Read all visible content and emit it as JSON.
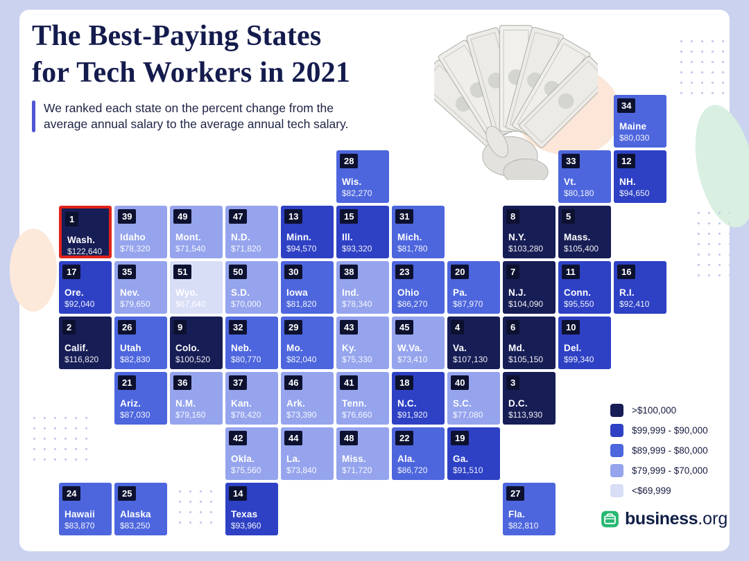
{
  "header": {
    "title_line1": "The Best-Paying States",
    "title_line2_pre": "for ",
    "title_line2_bold": "Tech Workers",
    "title_line2_post": " in 2021",
    "subtitle_line1": "We ranked each state on the percent change from the",
    "subtitle_line2": "average annual salary to the average annual tech salary."
  },
  "colors": {
    "background": "#cad2ef",
    "card": "#ffffff",
    "title_navy": "#141b4d",
    "accent_bar": "#5055d4",
    "badge": "#0d1130",
    "highlight": "#e0231c",
    "band1": "#171d55",
    "band2": "#2e41c4",
    "band3": "#4d66dd",
    "band4": "#95a4ed",
    "band5": "#d9def7",
    "logo_green": "#27b872",
    "logo_navy": "#0f1e46"
  },
  "legend": {
    "items": [
      {
        "label": ">$100,000",
        "band": "band1"
      },
      {
        "label": "$99,999 - $90,000",
        "band": "band2"
      },
      {
        "label": "$89,999 - $80,000",
        "band": "band3"
      },
      {
        "label": "$79,999 - $70,000",
        "band": "band4"
      },
      {
        "label": "<$69,999",
        "band": "band5"
      }
    ]
  },
  "logo": {
    "brand": "business",
    "tld": ".org"
  },
  "chart_data": {
    "type": "heatmap",
    "title": "The Best-Paying States for Tech Workers in 2021",
    "subtitle": "We ranked each state on the percent change from the average annual salary to the average annual tech salary.",
    "unit": "average annual tech salary (USD)",
    "bands": [
      {
        "label": ">$100,000",
        "color": "#171d55"
      },
      {
        "label": "$99,999 - $90,000",
        "color": "#2e41c4"
      },
      {
        "label": "$89,999 - $80,000",
        "color": "#4d66dd"
      },
      {
        "label": "$79,999 - $70,000",
        "color": "#95a4ed"
      },
      {
        "label": "<$69,999",
        "color": "#d9def7"
      }
    ],
    "states": [
      {
        "rank": 34,
        "name": "Maine",
        "salary": "$80,030",
        "col": 10,
        "row": 0,
        "band": "band3"
      },
      {
        "rank": 28,
        "name": "Wis.",
        "salary": "$82,270",
        "col": 5,
        "row": 1,
        "band": "band3"
      },
      {
        "rank": 33,
        "name": "Vt.",
        "salary": "$80,180",
        "col": 9,
        "row": 1,
        "band": "band3"
      },
      {
        "rank": 12,
        "name": "NH.",
        "salary": "$94,650",
        "col": 10,
        "row": 1,
        "band": "band2"
      },
      {
        "rank": 1,
        "name": "Wash.",
        "salary": "$122,640",
        "col": 0,
        "row": 2,
        "band": "band1",
        "highlight": true
      },
      {
        "rank": 39,
        "name": "Idaho",
        "salary": "$78,320",
        "col": 1,
        "row": 2,
        "band": "band4"
      },
      {
        "rank": 49,
        "name": "Mont.",
        "salary": "$71,540",
        "col": 2,
        "row": 2,
        "band": "band4"
      },
      {
        "rank": 47,
        "name": "N.D.",
        "salary": "$71,820",
        "col": 3,
        "row": 2,
        "band": "band4"
      },
      {
        "rank": 13,
        "name": "Minn.",
        "salary": "$94,570",
        "col": 4,
        "row": 2,
        "band": "band2"
      },
      {
        "rank": 15,
        "name": "Ill.",
        "salary": "$93,320",
        "col": 5,
        "row": 2,
        "band": "band2"
      },
      {
        "rank": 31,
        "name": "Mich.",
        "salary": "$81,780",
        "col": 6,
        "row": 2,
        "band": "band3"
      },
      {
        "rank": 8,
        "name": "N.Y.",
        "salary": "$103,280",
        "col": 8,
        "row": 2,
        "band": "band1"
      },
      {
        "rank": 5,
        "name": "Mass.",
        "salary": "$105,400",
        "col": 9,
        "row": 2,
        "band": "band1"
      },
      {
        "rank": 17,
        "name": "Ore.",
        "salary": "$92,040",
        "col": 0,
        "row": 3,
        "band": "band2"
      },
      {
        "rank": 35,
        "name": "Nev.",
        "salary": "$79,650",
        "col": 1,
        "row": 3,
        "band": "band4"
      },
      {
        "rank": 51,
        "name": "Wyo.",
        "salary": "$67,640",
        "col": 2,
        "row": 3,
        "band": "band5"
      },
      {
        "rank": 50,
        "name": "S.D.",
        "salary": "$70,000",
        "col": 3,
        "row": 3,
        "band": "band4"
      },
      {
        "rank": 30,
        "name": "Iowa",
        "salary": "$81,820",
        "col": 4,
        "row": 3,
        "band": "band3"
      },
      {
        "rank": 38,
        "name": "Ind.",
        "salary": "$78,340",
        "col": 5,
        "row": 3,
        "band": "band4"
      },
      {
        "rank": 23,
        "name": "Ohio",
        "salary": "$86,270",
        "col": 6,
        "row": 3,
        "band": "band3"
      },
      {
        "rank": 20,
        "name": "Pa.",
        "salary": "$87,970",
        "col": 7,
        "row": 3,
        "band": "band3"
      },
      {
        "rank": 7,
        "name": "N.J.",
        "salary": "$104,090",
        "col": 8,
        "row": 3,
        "band": "band1"
      },
      {
        "rank": 11,
        "name": "Conn.",
        "salary": "$95,550",
        "col": 9,
        "row": 3,
        "band": "band2"
      },
      {
        "rank": 16,
        "name": "R.I.",
        "salary": "$92,410",
        "col": 10,
        "row": 3,
        "band": "band2"
      },
      {
        "rank": 2,
        "name": "Calif.",
        "salary": "$116,820",
        "col": 0,
        "row": 4,
        "band": "band1"
      },
      {
        "rank": 26,
        "name": "Utah",
        "salary": "$82,830",
        "col": 1,
        "row": 4,
        "band": "band3"
      },
      {
        "rank": 9,
        "name": "Colo.",
        "salary": "$100,520",
        "col": 2,
        "row": 4,
        "band": "band1"
      },
      {
        "rank": 32,
        "name": "Neb.",
        "salary": "$80,770",
        "col": 3,
        "row": 4,
        "band": "band3"
      },
      {
        "rank": 29,
        "name": "Mo.",
        "salary": "$82,040",
        "col": 4,
        "row": 4,
        "band": "band3"
      },
      {
        "rank": 43,
        "name": "Ky.",
        "salary": "$75,330",
        "col": 5,
        "row": 4,
        "band": "band4"
      },
      {
        "rank": 45,
        "name": "W.Va.",
        "salary": "$73,410",
        "col": 6,
        "row": 4,
        "band": "band4"
      },
      {
        "rank": 4,
        "name": "Va.",
        "salary": "$107,130",
        "col": 7,
        "row": 4,
        "band": "band1"
      },
      {
        "rank": 6,
        "name": "Md.",
        "salary": "$105,150",
        "col": 8,
        "row": 4,
        "band": "band1"
      },
      {
        "rank": 10,
        "name": "Del.",
        "salary": "$99,340",
        "col": 9,
        "row": 4,
        "band": "band2"
      },
      {
        "rank": 21,
        "name": "Ariz.",
        "salary": "$87,030",
        "col": 1,
        "row": 5,
        "band": "band3"
      },
      {
        "rank": 36,
        "name": "N.M.",
        "salary": "$79,160",
        "col": 2,
        "row": 5,
        "band": "band4"
      },
      {
        "rank": 37,
        "name": "Kan.",
        "salary": "$78,420",
        "col": 3,
        "row": 5,
        "band": "band4"
      },
      {
        "rank": 46,
        "name": "Ark.",
        "salary": "$73,390",
        "col": 4,
        "row": 5,
        "band": "band4"
      },
      {
        "rank": 41,
        "name": "Tenn.",
        "salary": "$76,660",
        "col": 5,
        "row": 5,
        "band": "band4"
      },
      {
        "rank": 18,
        "name": "N.C.",
        "salary": "$91,920",
        "col": 6,
        "row": 5,
        "band": "band2"
      },
      {
        "rank": 40,
        "name": "S.C.",
        "salary": "$77,080",
        "col": 7,
        "row": 5,
        "band": "band4"
      },
      {
        "rank": 3,
        "name": "D.C.",
        "salary": "$113,930",
        "col": 8,
        "row": 5,
        "band": "band1"
      },
      {
        "rank": 42,
        "name": "Okla.",
        "salary": "$75,560",
        "col": 3,
        "row": 6,
        "band": "band4"
      },
      {
        "rank": 44,
        "name": "La.",
        "salary": "$73,840",
        "col": 4,
        "row": 6,
        "band": "band4"
      },
      {
        "rank": 48,
        "name": "Miss.",
        "salary": "$71,720",
        "col": 5,
        "row": 6,
        "band": "band4"
      },
      {
        "rank": 22,
        "name": "Ala.",
        "salary": "$86,720",
        "col": 6,
        "row": 6,
        "band": "band3"
      },
      {
        "rank": 19,
        "name": "Ga.",
        "salary": "$91,510",
        "col": 7,
        "row": 6,
        "band": "band2"
      },
      {
        "rank": 24,
        "name": "Hawaii",
        "salary": "$83,870",
        "col": 0,
        "row": 7,
        "band": "band3"
      },
      {
        "rank": 25,
        "name": "Alaska",
        "salary": "$83,250",
        "col": 1,
        "row": 7,
        "band": "band3"
      },
      {
        "rank": 14,
        "name": "Texas",
        "salary": "$93,960",
        "col": 3,
        "row": 7,
        "band": "band2"
      },
      {
        "rank": 27,
        "name": "Fla.",
        "salary": "$82,810",
        "col": 8,
        "row": 7,
        "band": "band3"
      }
    ]
  }
}
